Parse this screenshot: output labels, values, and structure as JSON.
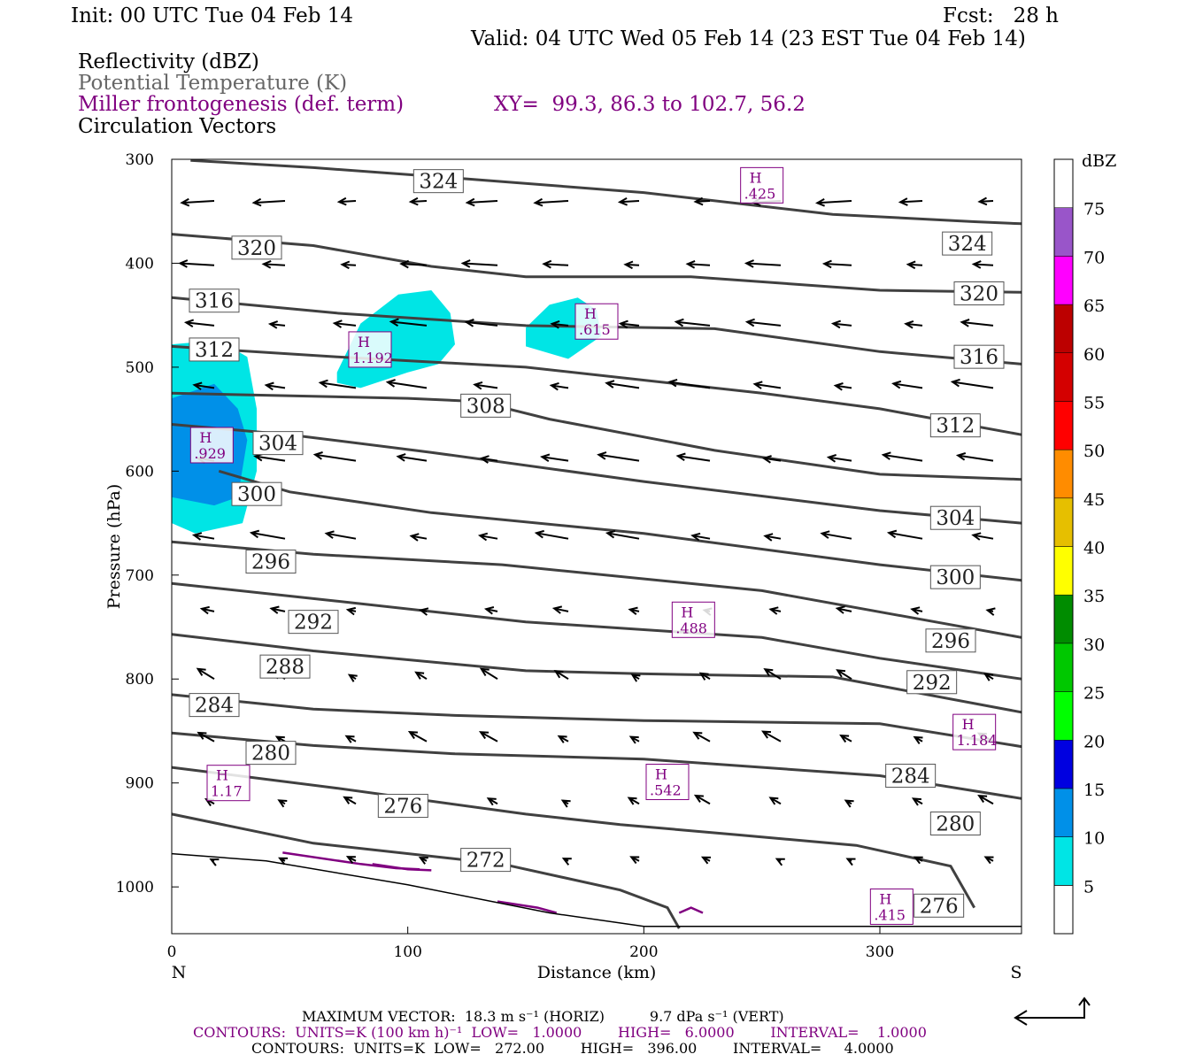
{
  "header": {
    "init": "Init: 00 UTC Tue 04 Feb 14",
    "fcst": "Fcst:   28 h",
    "valid": "Valid: 04 UTC Wed 05 Feb 14 (23 EST Tue 04 Feb 14)",
    "field1": "Reflectivity (dBZ)",
    "field2": "Potential Temperature (K)",
    "field3": "Miller frontogenesis (def. term)",
    "xy": "XY=  99.3, 86.3 to 102.7, 56.2",
    "field4": "Circulation Vectors"
  },
  "footer": {
    "line1": "MAXIMUM VECTOR:  18.3 m s⁻¹ (HORIZ)          9.7 dPa s⁻¹ (VERT)",
    "line2": "CONTOURS:  UNITS=K (100 km h)⁻¹  LOW=   1.0000        HIGH=   6.0000        INTERVAL=    1.0000",
    "line3": "CONTOURS:  UNITS=K  LOW=   272.00        HIGH=   396.00        INTERVAL=     4.0000"
  },
  "colors": {
    "theta": "#404040",
    "frontogenesis": "#800080",
    "vectors": "#000000",
    "refl_5": "#00e5e5",
    "refl_10": "#0090e8"
  },
  "chart_data": {
    "type": "cross-section",
    "xlabel": "Distance (km)",
    "ylabel": "Pressure (hPa)",
    "xlim": [
      0,
      360
    ],
    "ylim": [
      1045,
      300
    ],
    "xticks": [
      0,
      100,
      200,
      300
    ],
    "yticks": [
      300,
      400,
      500,
      600,
      700,
      800,
      900,
      1000
    ],
    "end_labels": {
      "left": "N",
      "right": "S"
    },
    "colorbar": {
      "label": "dBZ",
      "levels": [
        5,
        10,
        15,
        20,
        25,
        30,
        35,
        40,
        45,
        50,
        55,
        60,
        65,
        70,
        75
      ],
      "colors": [
        "#00e5e5",
        "#0090e8",
        "#0000e0",
        "#00ff00",
        "#00c800",
        "#008c00",
        "#ffff00",
        "#e6bf00",
        "#ff8c00",
        "#ff0000",
        "#d40000",
        "#bc0000",
        "#ff00ff",
        "#9955c9",
        "#ffffff"
      ]
    },
    "theta_contours": [
      {
        "value": 324,
        "points": [
          [
            8,
            301
          ],
          [
            60,
            308
          ],
          [
            120,
            318
          ],
          [
            200,
            332
          ],
          [
            280,
            353
          ],
          [
            340,
            360
          ],
          [
            360,
            362
          ]
        ],
        "labels": [
          [
            113,
            321
          ],
          [
            337,
            381
          ]
        ]
      },
      {
        "value": 320,
        "points": [
          [
            0,
            372
          ],
          [
            60,
            383
          ],
          [
            110,
            403
          ],
          [
            150,
            413
          ],
          [
            220,
            413
          ],
          [
            300,
            426
          ],
          [
            360,
            428
          ]
        ],
        "labels": [
          [
            36,
            385
          ],
          [
            342,
            429
          ]
        ]
      },
      {
        "value": 316,
        "points": [
          [
            0,
            433
          ],
          [
            70,
            448
          ],
          [
            150,
            460
          ],
          [
            230,
            463
          ],
          [
            300,
            485
          ],
          [
            360,
            497
          ]
        ],
        "labels": [
          [
            18,
            436
          ],
          [
            342,
            490
          ]
        ]
      },
      {
        "value": 312,
        "points": [
          [
            0,
            480
          ],
          [
            70,
            490
          ],
          [
            150,
            500
          ],
          [
            250,
            525
          ],
          [
            300,
            540
          ],
          [
            360,
            565
          ]
        ],
        "labels": [
          [
            18,
            483
          ],
          [
            332,
            556
          ]
        ]
      },
      {
        "value": 308,
        "points": [
          [
            0,
            525
          ],
          [
            100,
            530
          ],
          [
            130,
            533
          ],
          [
            160,
            550
          ],
          [
            230,
            580
          ],
          [
            300,
            603
          ],
          [
            360,
            608
          ]
        ],
        "labels": [
          [
            133,
            537
          ]
        ]
      },
      {
        "value": 304,
        "points": [
          [
            0,
            555
          ],
          [
            50,
            565
          ],
          [
            110,
            582
          ],
          [
            200,
            610
          ],
          [
            300,
            638
          ],
          [
            360,
            650
          ]
        ],
        "labels": [
          [
            45,
            573
          ],
          [
            332,
            645
          ]
        ]
      },
      {
        "value": 300,
        "points": [
          [
            20,
            600
          ],
          [
            50,
            620
          ],
          [
            110,
            640
          ],
          [
            200,
            660
          ],
          [
            300,
            690
          ],
          [
            360,
            705
          ]
        ],
        "labels": [
          [
            36,
            622
          ],
          [
            332,
            702
          ]
        ]
      },
      {
        "value": 296,
        "points": [
          [
            0,
            668
          ],
          [
            60,
            680
          ],
          [
            140,
            690
          ],
          [
            250,
            715
          ],
          [
            360,
            760
          ]
        ],
        "labels": [
          [
            42,
            687
          ],
          [
            330,
            763
          ]
        ]
      },
      {
        "value": 292,
        "points": [
          [
            0,
            708
          ],
          [
            70,
            725
          ],
          [
            150,
            745
          ],
          [
            250,
            760
          ],
          [
            300,
            780
          ],
          [
            360,
            800
          ]
        ],
        "labels": [
          [
            60,
            745
          ],
          [
            322,
            803
          ]
        ]
      },
      {
        "value": 288,
        "points": [
          [
            0,
            757
          ],
          [
            60,
            773
          ],
          [
            150,
            792
          ],
          [
            200,
            795
          ],
          [
            280,
            798
          ],
          [
            360,
            832
          ]
        ],
        "labels": [
          [
            48,
            788
          ]
        ]
      },
      {
        "value": 284,
        "points": [
          [
            0,
            815
          ],
          [
            60,
            829
          ],
          [
            120,
            835
          ],
          [
            200,
            840
          ],
          [
            300,
            843
          ],
          [
            360,
            865
          ]
        ],
        "labels": [
          [
            18,
            825
          ],
          [
            313,
            893
          ]
        ]
      },
      {
        "value": 280,
        "points": [
          [
            0,
            852
          ],
          [
            60,
            864
          ],
          [
            120,
            872
          ],
          [
            200,
            877
          ],
          [
            300,
            893
          ],
          [
            360,
            915
          ]
        ],
        "labels": [
          [
            42,
            871
          ],
          [
            332,
            939
          ]
        ]
      },
      {
        "value": 276,
        "points": [
          [
            0,
            885
          ],
          [
            70,
            905
          ],
          [
            150,
            930
          ],
          [
            190,
            940
          ],
          [
            240,
            950
          ],
          [
            290,
            960
          ],
          [
            330,
            980
          ],
          [
            340,
            1020
          ]
        ],
        "labels": [
          [
            98,
            922
          ],
          [
            325,
            1018
          ]
        ]
      },
      {
        "value": 272,
        "points": [
          [
            0,
            930
          ],
          [
            60,
            958
          ],
          [
            140,
            978
          ],
          [
            190,
            1003
          ],
          [
            210,
            1020
          ],
          [
            215,
            1040
          ]
        ],
        "labels": [
          [
            133,
            974
          ]
        ]
      }
    ],
    "frontogenesis_highs": [
      {
        "x": 17,
        "p": 575,
        "label": ".929"
      },
      {
        "x": 84,
        "p": 483,
        "label": "1.192"
      },
      {
        "x": 180,
        "p": 456,
        "label": ".615"
      },
      {
        "x": 250,
        "p": 325,
        "label": ".425"
      },
      {
        "x": 221,
        "p": 743,
        "label": ".488"
      },
      {
        "x": 340,
        "p": 851,
        "label": "1.184"
      },
      {
        "x": 24,
        "p": 900,
        "label": "1.17"
      },
      {
        "x": 210,
        "p": 899,
        "label": ".542"
      },
      {
        "x": 305,
        "p": 1019,
        "label": ".415"
      }
    ],
    "max_vector": {
      "horiz": 18.3,
      "horiz_units": "m s-1",
      "vert": 9.7,
      "vert_units": "dPa s-1"
    }
  }
}
